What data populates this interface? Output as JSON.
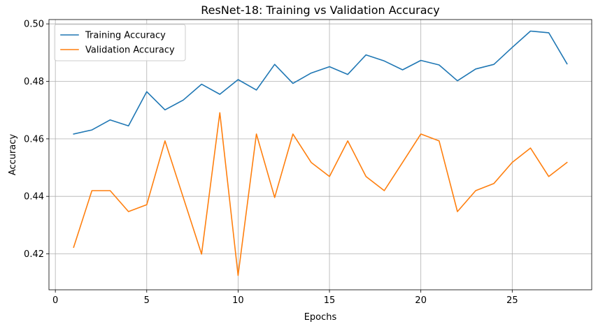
{
  "chart_data": {
    "type": "line",
    "title": "ResNet-18: Training vs Validation Accuracy",
    "xlabel": "Epochs",
    "ylabel": "Accuracy",
    "xlim": [
      -0.35,
      29.35
    ],
    "ylim": [
      0.4075,
      0.5015
    ],
    "xticks": [
      0,
      5,
      10,
      15,
      20,
      25
    ],
    "yticks": [
      0.42,
      0.44,
      0.46,
      0.48,
      0.5
    ],
    "xtick_labels": [
      "0",
      "5",
      "10",
      "15",
      "20",
      "25"
    ],
    "ytick_labels": [
      "0.42",
      "0.44",
      "0.46",
      "0.48",
      "0.50"
    ],
    "grid": true,
    "legend_position": "top-left",
    "x": [
      1,
      2,
      3,
      4,
      5,
      6,
      7,
      8,
      9,
      10,
      11,
      12,
      13,
      14,
      15,
      16,
      17,
      18,
      19,
      20,
      21,
      22,
      23,
      24,
      25,
      26,
      27,
      28
    ],
    "series": [
      {
        "name": "Training Accuracy",
        "color": "#1f77b4",
        "values": [
          0.4617,
          0.4631,
          0.4666,
          0.4645,
          0.4764,
          0.4701,
          0.4735,
          0.479,
          0.4755,
          0.4806,
          0.477,
          0.4859,
          0.4793,
          0.4829,
          0.4851,
          0.4824,
          0.4892,
          0.4871,
          0.484,
          0.4873,
          0.4857,
          0.4802,
          0.4843,
          0.4859,
          0.4918,
          0.4975,
          0.4969,
          0.4861
        ]
      },
      {
        "name": "Validation Accuracy",
        "color": "#ff7f0e",
        "values": [
          0.4223,
          0.442,
          0.442,
          0.4347,
          0.4371,
          0.4593,
          0.4396,
          0.4199,
          0.4691,
          0.4125,
          0.4617,
          0.4396,
          0.4617,
          0.4518,
          0.4469,
          0.4593,
          0.4469,
          0.442,
          0.4518,
          0.4617,
          0.4593,
          0.4347,
          0.442,
          0.4445,
          0.4518,
          0.4568,
          0.4469,
          0.4518
        ]
      }
    ]
  }
}
